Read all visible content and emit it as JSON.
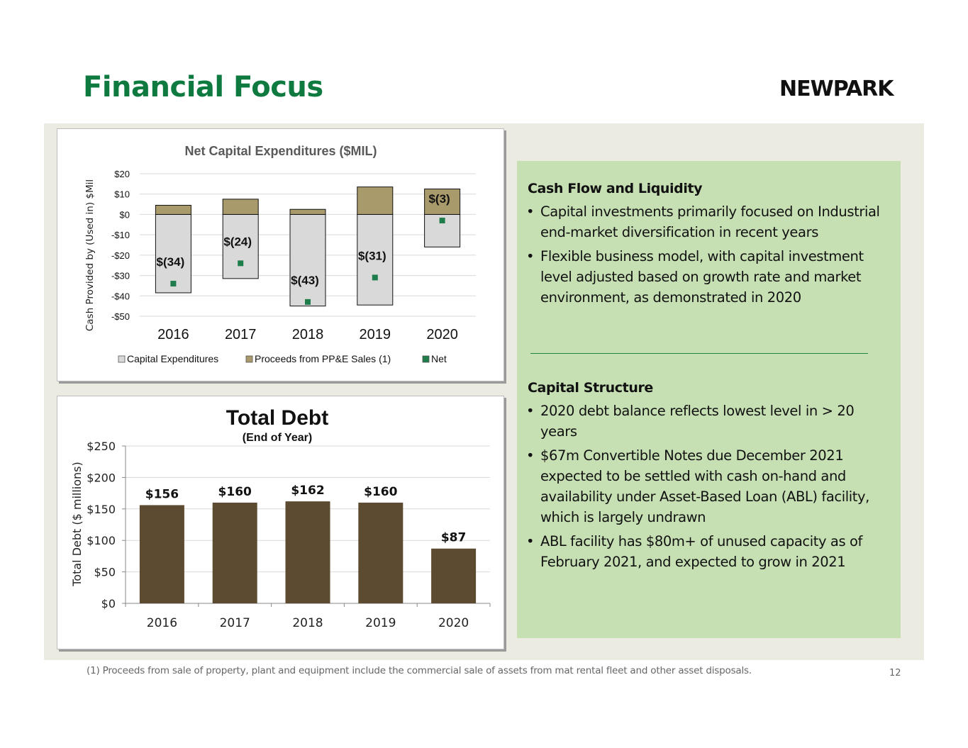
{
  "slide": {
    "title": "Financial Focus",
    "logo_text": "NEWPARK",
    "page_number": "12",
    "footnote": "(1)   Proceeds from sale of property, plant and equipment include the commercial sale of assets from mat rental fleet and other asset disposals."
  },
  "colors": {
    "title_green": "#0f7a40",
    "panel_bg": "#ecebe1",
    "text_box_green": "#c6e0b4",
    "capex_fill": "#d9d9d9",
    "proceeds_fill": "#a89a6a",
    "net_marker": "#1e7d4a",
    "debt_bar": "#5c4b30"
  },
  "text_box": {
    "cash_flow": {
      "heading": "Cash Flow and Liquidity",
      "bullets": [
        "Capital investments primarily focused on Industrial end-market diversification in recent years",
        "Flexible business model, with capital investment level adjusted based on growth rate and market environment, as demonstrated in 2020"
      ]
    },
    "capital_structure": {
      "heading": "Capital Structure",
      "bullets": [
        "2020 debt balance reflects lowest level in > 20 years",
        "$67m Convertible Notes due December 2021 expected to be settled with cash on-hand and availability under Asset-Based Loan (ABL) facility, which is largely undrawn",
        "ABL facility has $80m+ of unused capacity as of February 2021, and expected to grow in 2021"
      ]
    }
  },
  "chart_data": [
    {
      "type": "bar",
      "title": "Net Capital Expenditures ($MIL)",
      "ylabel": "Cash Provided by (Used in) $Mil",
      "xlabel": "",
      "categories": [
        "2016",
        "2017",
        "2018",
        "2019",
        "2020"
      ],
      "ylim": [
        -50,
        20
      ],
      "yticks": [
        20,
        10,
        0,
        -10,
        -20,
        -30,
        -40,
        -50
      ],
      "ytick_labels": [
        "$20",
        "$10",
        "$0",
        "-$10",
        "-$20",
        "-$30",
        "-$40",
        "-$50"
      ],
      "series": [
        {
          "name": "Capital Expenditures",
          "values": [
            -38.5,
            -31.5,
            -45,
            -44.5,
            -16
          ],
          "style": "stacked_bar"
        },
        {
          "name": "Proceeds from PP&E Sales (1)",
          "values": [
            4.5,
            7.5,
            2.5,
            13.5,
            12.5
          ],
          "style": "stacked_bar"
        },
        {
          "name": "Net",
          "values": [
            -34,
            -24,
            -43,
            -31,
            -3
          ],
          "style": "marker"
        }
      ],
      "data_labels": [
        "$(34)",
        "$(24)",
        "$(43)",
        "$(31)",
        "$(3)"
      ],
      "grid": true,
      "legend": "bottom"
    },
    {
      "type": "bar",
      "title": "Total Debt",
      "subtitle": "(End of Year)",
      "ylabel": "Total Debt ($ millions)",
      "xlabel": "",
      "categories": [
        "2016",
        "2017",
        "2018",
        "2019",
        "2020"
      ],
      "values": [
        156,
        160,
        162,
        160,
        87
      ],
      "data_labels": [
        "$156",
        "$160",
        "$162",
        "$160",
        "$87"
      ],
      "ylim": [
        0,
        250
      ],
      "yticks": [
        0,
        50,
        100,
        150,
        200,
        250
      ],
      "ytick_labels": [
        "$0",
        "$50",
        "$100",
        "$150",
        "$200",
        "$250"
      ],
      "grid": true,
      "legend": "none"
    }
  ]
}
